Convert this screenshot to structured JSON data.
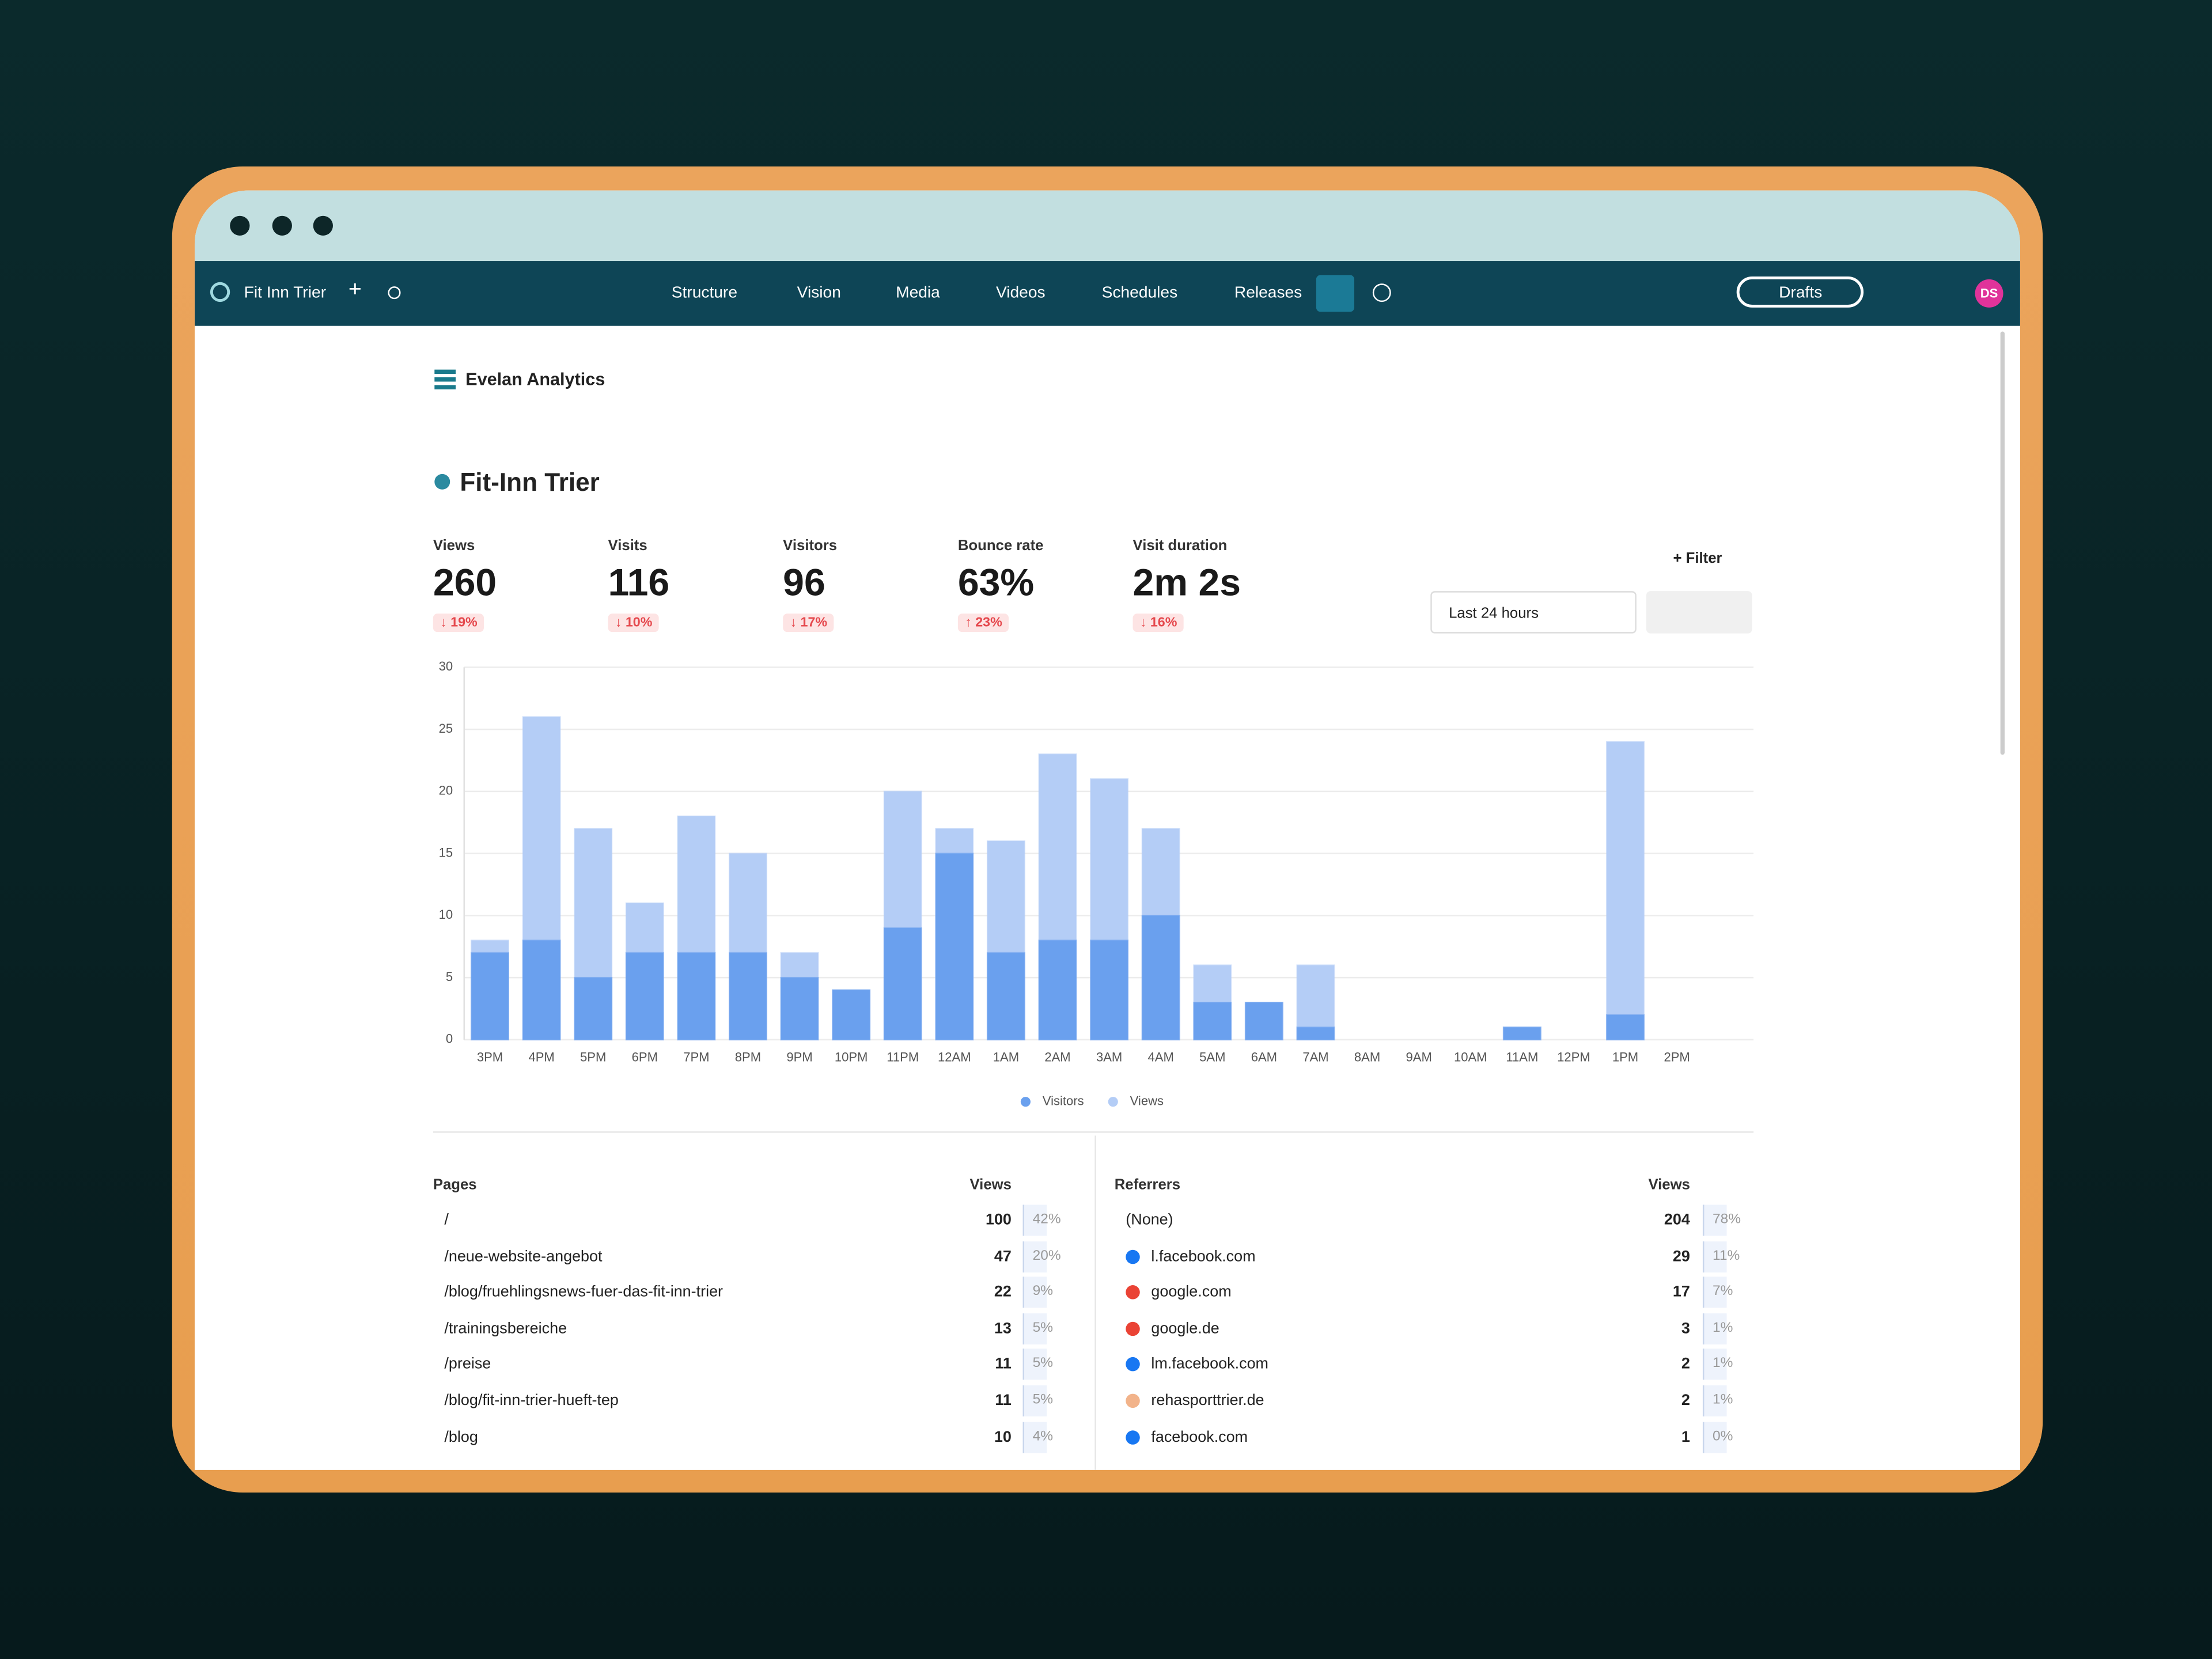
{
  "nav": {
    "site": "Fit Inn Trier",
    "items": [
      "Structure",
      "Vision",
      "Media",
      "Videos",
      "Schedules",
      "Releases"
    ],
    "drafts": "Drafts",
    "avatar": "DS"
  },
  "header": {
    "title": "Evelan Analytics"
  },
  "site": {
    "title": "Fit-Inn Trier"
  },
  "stats": [
    {
      "label": "Views",
      "value": "260",
      "change": "↓ 19%"
    },
    {
      "label": "Visits",
      "value": "116",
      "change": "↓ 10%"
    },
    {
      "label": "Visitors",
      "value": "96",
      "change": "↓ 17%"
    },
    {
      "label": "Bounce rate",
      "value": "63%",
      "change": "↑ 23%"
    },
    {
      "label": "Visit duration",
      "value": "2m 2s",
      "change": "↓ 16%"
    }
  ],
  "controls": {
    "filter": "Filter",
    "range": "Last 24 hours"
  },
  "chart_data": {
    "type": "bar",
    "categories": [
      "3PM",
      "4PM",
      "5PM",
      "6PM",
      "7PM",
      "8PM",
      "9PM",
      "10PM",
      "11PM",
      "12AM",
      "1AM",
      "2AM",
      "3AM",
      "4AM",
      "5AM",
      "6AM",
      "7AM",
      "8AM",
      "9AM",
      "10AM",
      "11AM",
      "12PM",
      "1PM",
      "2PM"
    ],
    "series": [
      {
        "name": "Views",
        "color": "#b4cdf6",
        "values": [
          8,
          26,
          17,
          11,
          18,
          15,
          7,
          4,
          20,
          17,
          16,
          23,
          21,
          17,
          6,
          3,
          6,
          0,
          0,
          0,
          1,
          0,
          24,
          0
        ]
      },
      {
        "name": "Visitors",
        "color": "#6aa0ee",
        "values": [
          7,
          8,
          5,
          7,
          7,
          7,
          5,
          4,
          9,
          15,
          7,
          8,
          8,
          10,
          3,
          3,
          1,
          0,
          0,
          0,
          1,
          0,
          2,
          0
        ]
      }
    ],
    "ylim": [
      0,
      30
    ],
    "yticks": [
      0,
      5,
      10,
      15,
      20,
      25,
      30
    ],
    "grid": true
  },
  "pages": {
    "title": "Pages",
    "column": "Views",
    "rows": [
      [
        "/",
        "100",
        "42%"
      ],
      [
        "/neue-website-angebot",
        "47",
        "20%"
      ],
      [
        "/blog/fruehlingsnews-fuer-das-fit-inn-trier",
        "22",
        "9%"
      ],
      [
        "/trainingsbereiche",
        "13",
        "5%"
      ],
      [
        "/preise",
        "11",
        "5%"
      ],
      [
        "/blog/fit-inn-trier-hueft-tep",
        "11",
        "5%"
      ],
      [
        "/blog",
        "10",
        "4%"
      ]
    ]
  },
  "referrers": {
    "title": "Referrers",
    "column": "Views",
    "rows": [
      [
        "(None)",
        "204",
        "78%"
      ],
      [
        "l.facebook.com",
        "29",
        "11%"
      ],
      [
        "google.com",
        "17",
        "7%"
      ],
      [
        "google.de",
        "3",
        "1%"
      ],
      [
        "lm.facebook.com",
        "2",
        "1%"
      ],
      [
        "rehasporttrier.de",
        "2",
        "1%"
      ],
      [
        "facebook.com",
        "1",
        "0%"
      ]
    ]
  }
}
